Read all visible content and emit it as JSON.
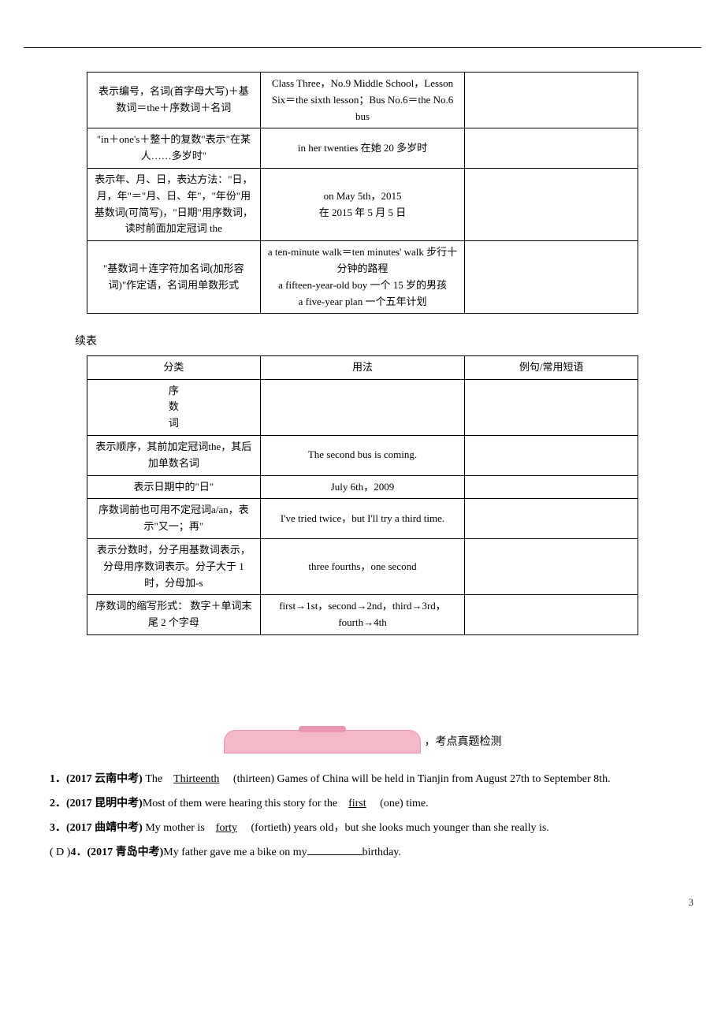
{
  "table1": {
    "rows": [
      {
        "c1": "表示编号，名词(首字母大写)＋基数词＝the＋序数词＋名词",
        "c2": "Class Three，No.9 Middle School，Lesson Six＝the sixth lesson；Bus No.6＝the No.6 bus",
        "c3": ""
      },
      {
        "c1": "\"in＋one's＋整十的复数\"表示\"在某人……多岁时\"",
        "c2": "in her twenties 在她 20 多岁时",
        "c3": ""
      },
      {
        "c1": "表示年、月、日，表达方法：\"日，月，年\"＝\"月、日、年\"，\"年份\"用基数词(可简写)，\"日期\"用序数词，读时前面加定冠词 the",
        "c2": "on May 5th，2015\n在 2015 年 5 月 5 日",
        "c3": ""
      },
      {
        "c1": "\"基数词＋连字符加名词(加形容词)\"作定语，名词用单数形式",
        "c2": "a ten-minute walk＝ten minutes' walk 步行十分钟的路程\na fifteen-year-old boy 一个 15 岁的男孩\na five-year plan 一个五年计划",
        "c3": ""
      }
    ]
  },
  "continueLabel": "续表",
  "table2": {
    "header": {
      "c1": "分类",
      "c2": "用法",
      "c3": "例句/常用短语"
    },
    "subheader": "序\n数\n词",
    "rows": [
      {
        "c1": "表示顺序，其前加定冠词the，其后加单数名词",
        "c2": "The second bus is coming.",
        "c3": ""
      },
      {
        "c1": "表示日期中的\"日\"",
        "c2": "July 6th，2009",
        "c3": ""
      },
      {
        "c1": "序数词前也可用不定冠词a/an，表示\"又一；再\"",
        "c2": "I've tried twice，but I'll try a third time.",
        "c3": ""
      },
      {
        "c1": "表示分数时，分子用基数词表示，分母用序数词表示。分子大于 1 时，分母加-s",
        "c2": "three fourths，one second",
        "c3": ""
      },
      {
        "c1": "序数词的缩写形式： 数字＋单词末尾 2 个字母",
        "c2": "first→1st，second→2nd，third→3rd，fourth→4th",
        "c3": ""
      }
    ]
  },
  "sectionTitle": "，考点真题检测",
  "questions": {
    "q1": {
      "num": "1．",
      "source": "(2017 云南中考)",
      "before": " The",
      "answer": "Thirteenth",
      "after": " (thirteen) Games of China will be held in Tianjin from August 27th to September 8th."
    },
    "q2": {
      "num": "2．",
      "source": "(2017 昆明中考)",
      "before": "Most of them  were  hearing this story for the",
      "answer": "first",
      "after": " (one) time."
    },
    "q3": {
      "num": "3．",
      "source": "(2017 曲靖中考)",
      "before": " My mother is",
      "answer": "forty",
      "after": " (fortieth) years old，but she looks much younger than she really is."
    },
    "q4": {
      "prefix": "(  D  )",
      "num": "4．",
      "source": "(2017 青岛中考)",
      "before": "My father gave me a bike on my",
      "after": "birthday."
    }
  },
  "pageNum": "3"
}
